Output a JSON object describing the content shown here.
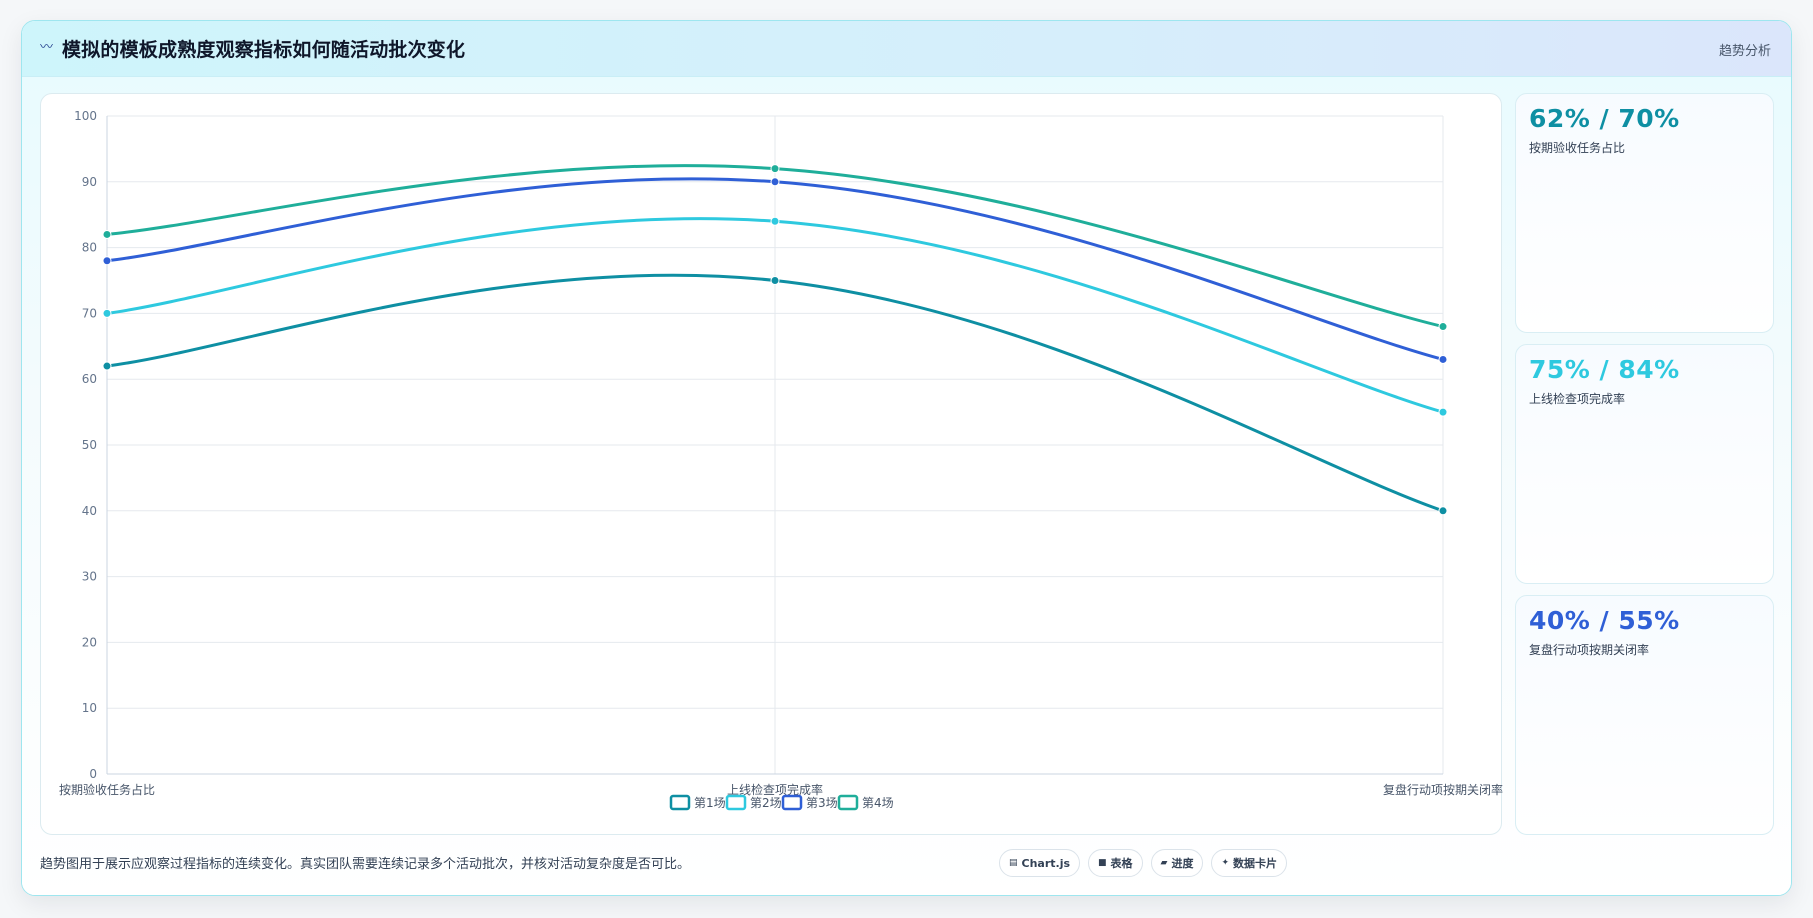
{
  "header": {
    "title": "模拟的模板成熟度观察指标如何随活动批次变化",
    "tag": "趋势分析"
  },
  "chart_data": {
    "type": "line",
    "categories": [
      "按期验收任务占比",
      "上线检查项完成率",
      "复盘行动项按期关闭率"
    ],
    "series": [
      {
        "name": "第1场",
        "values": [
          62,
          75,
          40
        ],
        "color": "#0e8fa3"
      },
      {
        "name": "第2场",
        "values": [
          70,
          84,
          55
        ],
        "color": "#2ec9df"
      },
      {
        "name": "第3场",
        "values": [
          78,
          90,
          63
        ],
        "color": "#2f5fd6"
      },
      {
        "name": "第4场",
        "values": [
          82,
          92,
          68
        ],
        "color": "#1fae9a"
      }
    ],
    "ylim": [
      0,
      100
    ],
    "yticks": [
      "0",
      "10",
      "20",
      "30",
      "40",
      "50",
      "60",
      "70",
      "80",
      "90",
      "100"
    ],
    "xlabel": "",
    "ylabel": "",
    "grid": true,
    "legend": "bottom"
  },
  "kpis": [
    {
      "value": "62% / 70%",
      "label": "按期验收任务占比",
      "color": "#0e8fa3"
    },
    {
      "value": "75% / 84%",
      "label": "上线检查项完成率",
      "color": "#2ec9df"
    },
    {
      "value": "40% / 55%",
      "label": "复盘行动项按期关闭率",
      "color": "#2f5fd6"
    }
  ],
  "footer": {
    "note": "趋势图用于展示应观察过程指标的连续变化。真实团队需要连续记录多个活动批次，并核对活动复杂度是否可比。",
    "chips": [
      {
        "icon": "chart-icon",
        "label": "Chart.js"
      },
      {
        "icon": "table-icon",
        "label": "表格"
      },
      {
        "icon": "progress-icon",
        "label": "进度"
      },
      {
        "icon": "card-icon",
        "label": "数据卡片"
      }
    ]
  }
}
